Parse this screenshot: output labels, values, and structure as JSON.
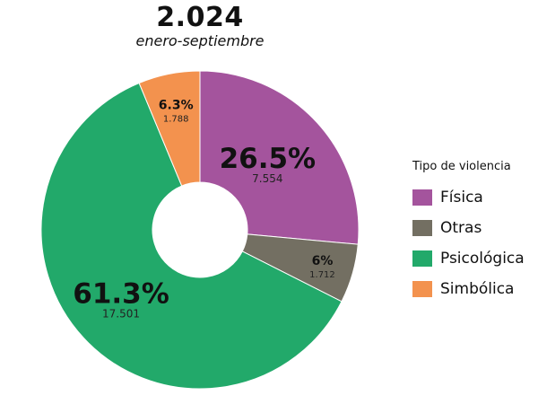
{
  "chart_data": {
    "type": "pie",
    "title": "2.024",
    "subtitle": "enero-septiembre",
    "legend_title": "Tipo de violencia",
    "legend_placement": "right",
    "categories": [
      "Física",
      "Otras",
      "Psicológica",
      "Simbólica"
    ],
    "values": [
      7554,
      1712,
      17501,
      1788
    ],
    "value_labels": [
      "7.554",
      "1.712",
      "17.501",
      "1.788"
    ],
    "percent_labels": [
      "26.5%",
      "6%",
      "61.3%",
      "6.3%"
    ],
    "colors": [
      "#a4549d",
      "#736f62",
      "#22a96a",
      "#f3924e"
    ]
  }
}
